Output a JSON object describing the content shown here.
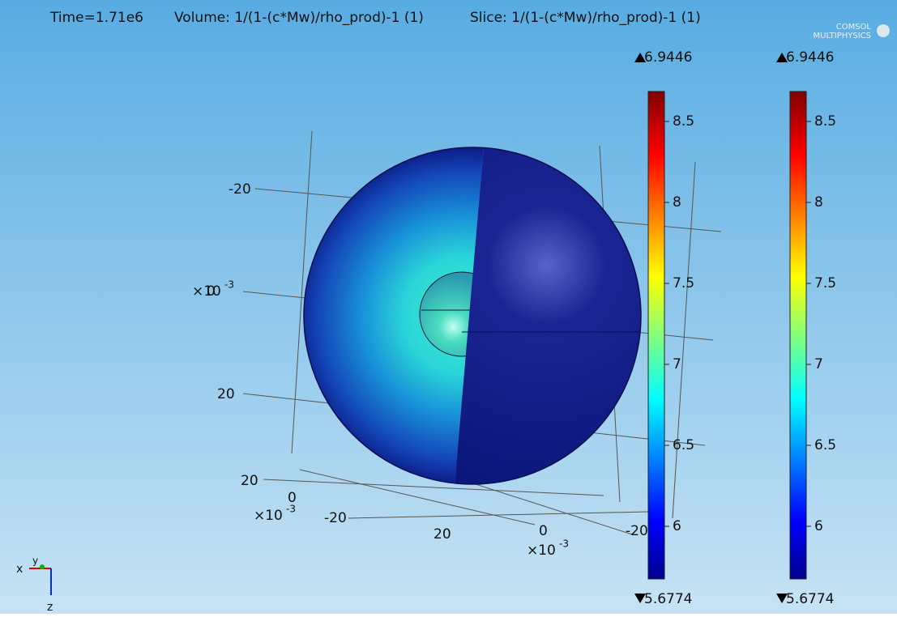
{
  "header": {
    "time": "Time=1.71e6",
    "volume": "Volume: 1/(1-(c*Mw)/rho_prod)-1 (1)",
    "slice": "Slice: 1/(1-(c*Mw)/rho_prod)-1 (1)",
    "logo": [
      "COMSOL",
      "MULTIPHYSICS"
    ]
  },
  "axis_labels": [
    "-20",
    "20",
    "20",
    "0",
    "-20",
    "20",
    "0",
    "-20",
    "0"
  ],
  "multipliers": [
    {
      "base": "×10",
      "exp": "-3"
    },
    {
      "base": "×10",
      "exp": "-3"
    },
    {
      "base": "×10",
      "exp": "-3"
    }
  ],
  "colorbars": [
    {
      "max_label": "6.9446",
      "min_label": "5.6774",
      "ticks": [
        "8.5",
        "8",
        "7.5",
        "7",
        "6.5",
        "6"
      ]
    },
    {
      "max_label": "6.9446",
      "min_label": "5.6774",
      "ticks": [
        "8.5",
        "8",
        "7.5",
        "7",
        "6.5",
        "6"
      ]
    }
  ],
  "triad": [
    "x",
    "y",
    "z"
  ]
}
